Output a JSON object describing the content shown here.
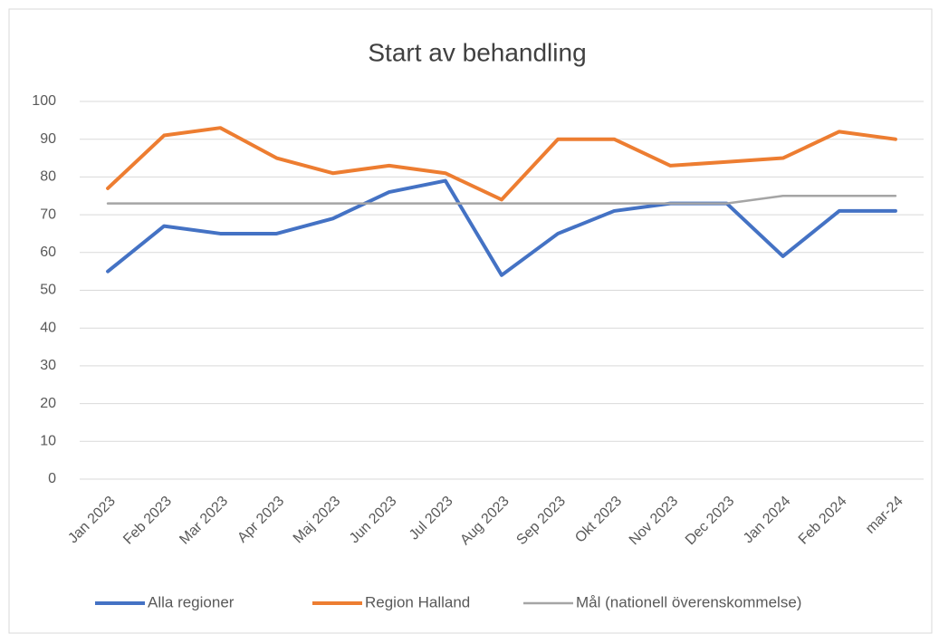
{
  "chart_data": {
    "type": "line",
    "title": "Start av behandling",
    "categories": [
      "Jan 2023",
      "Feb 2023",
      "Mar 2023",
      "Apr 2023",
      "Maj 2023",
      "Jun 2023",
      "Jul 2023",
      "Aug 2023",
      "Sep 2023",
      "Okt 2023",
      "Nov 2023",
      "Dec 2023",
      "Jan 2024",
      "Feb 2024",
      "mar-24"
    ],
    "series": [
      {
        "name": "Alla regioner",
        "color": "#4472c4",
        "width": 4,
        "values": [
          55,
          67,
          65,
          65,
          69,
          76,
          79,
          54,
          65,
          71,
          73,
          73,
          59,
          71,
          71
        ]
      },
      {
        "name": "Region Halland",
        "color": "#ed7d31",
        "width": 4,
        "values": [
          77,
          91,
          93,
          85,
          81,
          83,
          81,
          74,
          90,
          90,
          83,
          84,
          85,
          92,
          90
        ]
      },
      {
        "name": "Mål (nationell överenskommelse)",
        "color": "#a5a5a5",
        "width": 2.5,
        "values": [
          73,
          73,
          73,
          73,
          73,
          73,
          73,
          73,
          73,
          73,
          73,
          73,
          75,
          75,
          75
        ]
      }
    ],
    "ylim": [
      0,
      100
    ],
    "yticks": [
      0,
      10,
      20,
      30,
      40,
      50,
      60,
      70,
      80,
      90,
      100
    ],
    "grid": true,
    "legend": "bottom"
  }
}
